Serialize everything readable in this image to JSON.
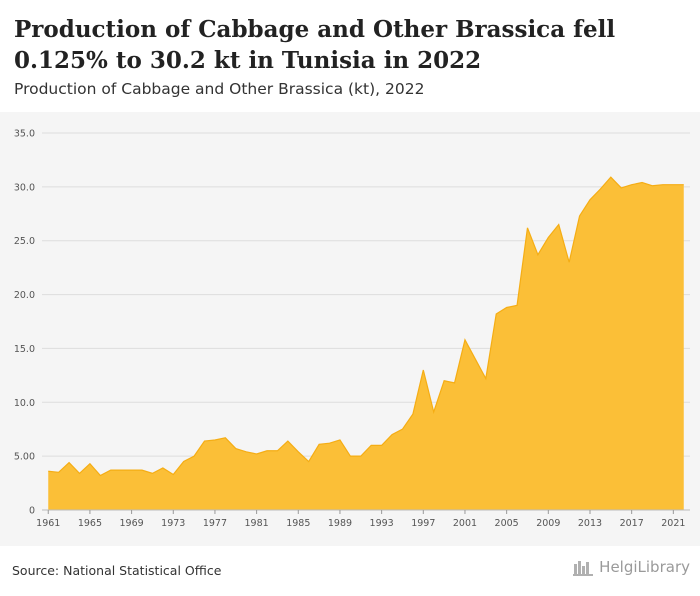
{
  "header": {
    "title": "Production of Cabbage and Other Brassica fell 0.125% to 30.2 kt in Tunisia in 2022",
    "subtitle": "Production of Cabbage and Other Brassica (kt), 2022"
  },
  "footer": {
    "source": "Source: National Statistical Office",
    "logo_text": "HelgiLibrary"
  },
  "colors": {
    "area_fill": "#fbbf37",
    "area_stroke": "#f5ad14",
    "grid": "#dddddd",
    "chart_background": "#f5f5f5"
  },
  "chart_data": {
    "type": "area",
    "title": "Production of Cabbage and Other Brassica fell 0.125% to 30.2 kt in Tunisia in 2022",
    "subtitle": "Production of Cabbage and Other Brassica (kt), 2022",
    "xlabel": "",
    "ylabel": "",
    "ylim": [
      0,
      35
    ],
    "y_ticks": [
      "0",
      "5.00",
      "10.0",
      "15.0",
      "20.0",
      "25.0",
      "30.0",
      "35.0"
    ],
    "y_tick_values": [
      0,
      5,
      10,
      15,
      20,
      25,
      30,
      35
    ],
    "x_ticks": [
      1961,
      1965,
      1969,
      1973,
      1977,
      1981,
      1985,
      1989,
      1993,
      1997,
      2001,
      2005,
      2009,
      2013,
      2017,
      2021
    ],
    "grid": true,
    "x": [
      1961,
      1962,
      1963,
      1964,
      1965,
      1966,
      1967,
      1968,
      1969,
      1970,
      1971,
      1972,
      1973,
      1974,
      1975,
      1976,
      1977,
      1978,
      1979,
      1980,
      1981,
      1982,
      1983,
      1984,
      1985,
      1986,
      1987,
      1988,
      1989,
      1990,
      1991,
      1992,
      1993,
      1994,
      1995,
      1996,
      1997,
      1998,
      1999,
      2000,
      2001,
      2002,
      2003,
      2004,
      2005,
      2006,
      2007,
      2008,
      2009,
      2010,
      2011,
      2012,
      2013,
      2014,
      2015,
      2016,
      2017,
      2018,
      2019,
      2020,
      2021,
      2022
    ],
    "values": [
      3.6,
      3.5,
      4.4,
      3.4,
      4.3,
      3.2,
      3.7,
      3.7,
      3.7,
      3.7,
      3.4,
      3.9,
      3.3,
      4.5,
      5.0,
      6.4,
      6.5,
      6.7,
      5.7,
      5.4,
      5.2,
      5.5,
      5.5,
      6.4,
      5.4,
      4.5,
      6.1,
      6.2,
      6.5,
      5.0,
      5.0,
      6.0,
      6.0,
      7.0,
      7.5,
      8.9,
      13.0,
      9.1,
      12.0,
      11.8,
      15.8,
      14.0,
      12.2,
      18.2,
      18.8,
      19.0,
      26.2,
      23.7,
      25.3,
      26.5,
      23.0,
      27.3,
      28.8,
      29.8,
      30.9,
      29.9,
      30.2,
      30.4,
      30.1,
      30.2,
      30.2,
      30.2
    ]
  }
}
